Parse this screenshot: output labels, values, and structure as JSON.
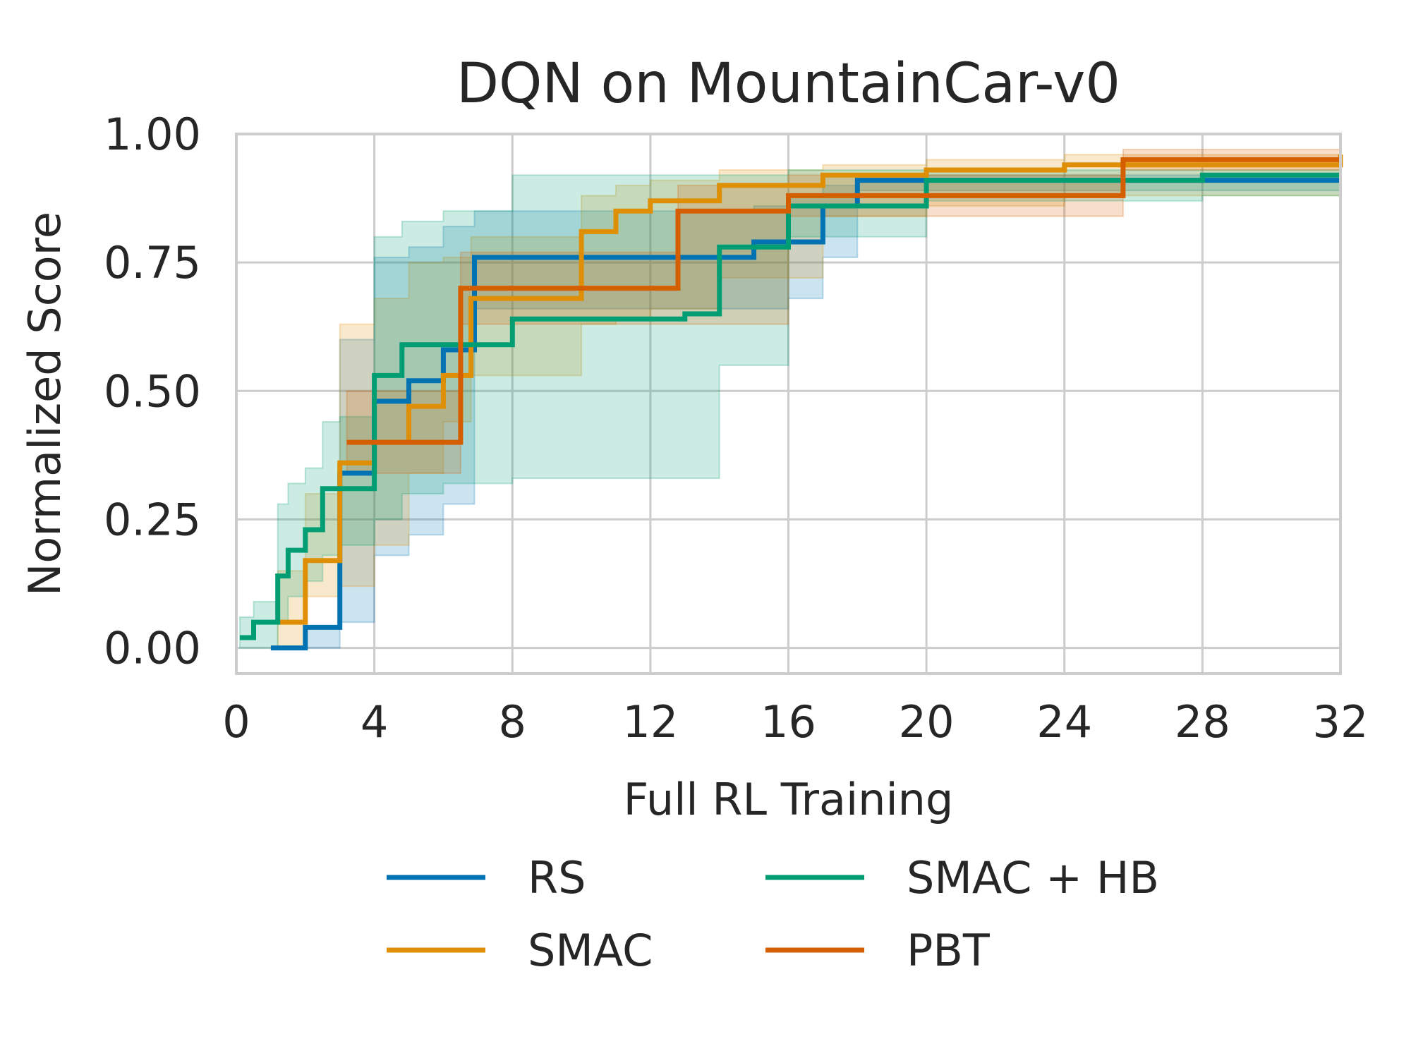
{
  "chart_data": {
    "type": "line",
    "title": "DQN on MountainCar-v0",
    "xlabel": "Full RL Training",
    "ylabel": "Normalized Score",
    "xlim": [
      0,
      32
    ],
    "ylim": [
      -0.05,
      1.0
    ],
    "xticks": [
      "0",
      "4",
      "8",
      "12",
      "16",
      "20",
      "24",
      "28",
      "32"
    ],
    "yticks": [
      "0.00",
      "0.25",
      "0.50",
      "0.75",
      "1.00"
    ],
    "grid": true,
    "legend_position": "bottom",
    "series": [
      {
        "name": "RS",
        "color": "#0173b2",
        "x": [
          1,
          2,
          3,
          3.2,
          4,
          5,
          6,
          6.9,
          15,
          16,
          17,
          18,
          32
        ],
        "y": [
          0.0,
          0.04,
          0.34,
          0.34,
          0.48,
          0.52,
          0.58,
          0.76,
          0.79,
          0.79,
          0.86,
          0.91,
          0.91
        ],
        "band_lower": [
          0.0,
          0.0,
          0.05,
          0.05,
          0.18,
          0.22,
          0.28,
          0.66,
          0.66,
          0.68,
          0.76,
          0.89,
          0.89
        ],
        "band_upper": [
          0.0,
          0.04,
          0.6,
          0.6,
          0.76,
          0.78,
          0.82,
          0.85,
          0.86,
          0.88,
          0.9,
          0.92,
          0.92
        ]
      },
      {
        "name": "SMAC",
        "color": "#de8f05",
        "x": [
          1.2,
          2,
          3,
          4,
          5,
          6,
          6.8,
          10,
          11,
          12,
          14,
          17,
          20,
          24,
          32
        ],
        "y": [
          0.05,
          0.17,
          0.36,
          0.4,
          0.47,
          0.53,
          0.68,
          0.81,
          0.85,
          0.87,
          0.9,
          0.92,
          0.93,
          0.94,
          0.96
        ],
        "band_lower": [
          0.0,
          0.1,
          0.12,
          0.2,
          0.34,
          0.44,
          0.53,
          0.63,
          0.64,
          0.66,
          0.72,
          0.84,
          0.86,
          0.88,
          0.92
        ],
        "band_upper": [
          0.15,
          0.3,
          0.63,
          0.68,
          0.75,
          0.76,
          0.8,
          0.88,
          0.9,
          0.91,
          0.93,
          0.94,
          0.95,
          0.96,
          0.97
        ]
      },
      {
        "name": "SMAC + HB",
        "color": "#029e73",
        "x": [
          0.1,
          0.5,
          1.2,
          1.5,
          2,
          2.5,
          3,
          4,
          4.8,
          6,
          8,
          13,
          14,
          16,
          20,
          28,
          32
        ],
        "y": [
          0.02,
          0.05,
          0.14,
          0.19,
          0.23,
          0.31,
          0.31,
          0.53,
          0.59,
          0.59,
          0.64,
          0.65,
          0.78,
          0.86,
          0.91,
          0.92,
          0.92
        ],
        "band_lower": [
          0.0,
          0.0,
          0.05,
          0.1,
          0.13,
          0.18,
          0.2,
          0.25,
          0.3,
          0.32,
          0.33,
          0.33,
          0.55,
          0.8,
          0.87,
          0.88,
          0.88
        ],
        "band_upper": [
          0.06,
          0.09,
          0.28,
          0.32,
          0.35,
          0.44,
          0.45,
          0.8,
          0.83,
          0.85,
          0.92,
          0.92,
          0.92,
          0.93,
          0.93,
          0.93,
          0.93
        ]
      },
      {
        "name": "PBT",
        "color": "#d55e00",
        "x": [
          3.2,
          6.5,
          12.8,
          16,
          25.7,
          32
        ],
        "y": [
          0.4,
          0.7,
          0.85,
          0.88,
          0.95,
          0.95
        ],
        "band_lower": [
          0.34,
          0.63,
          0.63,
          0.84,
          0.93,
          0.93
        ],
        "band_upper": [
          0.5,
          0.77,
          0.9,
          0.92,
          0.97,
          0.97
        ]
      }
    ]
  },
  "legend": {
    "items": [
      "RS",
      "SMAC",
      "SMAC + HB",
      "PBT"
    ]
  }
}
